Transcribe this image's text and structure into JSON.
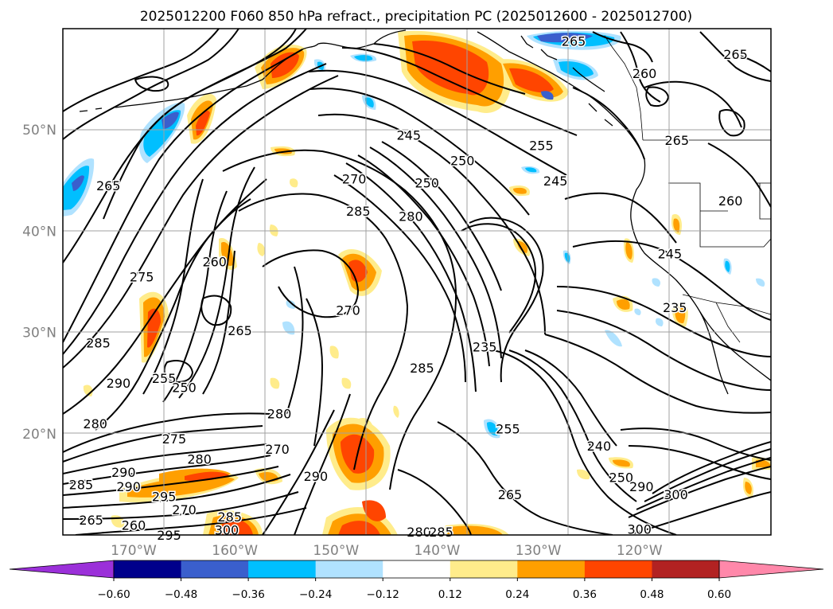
{
  "title": "2025012200 F060 850 hPa refract., precipitation PC (2025012600 - 2025012700)",
  "map": {
    "projection": "equirectangular",
    "lon_range": [
      -177,
      -107
    ],
    "lat_range": [
      10,
      60
    ],
    "lat_labels": [
      {
        "lat": 50,
        "text": "50°N"
      },
      {
        "lat": 40,
        "text": "40°N"
      },
      {
        "lat": 30,
        "text": "30°N"
      },
      {
        "lat": 20,
        "text": "20°N"
      }
    ],
    "lon_labels": [
      {
        "lon": -170,
        "text": "170°W"
      },
      {
        "lon": -160,
        "text": "160°W"
      },
      {
        "lon": -150,
        "text": "150°W"
      },
      {
        "lon": -140,
        "text": "140°W"
      },
      {
        "lon": -130,
        "text": "130°W"
      },
      {
        "lon": -120,
        "text": "120°W"
      }
    ],
    "contour_labels": [
      {
        "text": "265",
        "lon": -172.5,
        "lat": 44.5
      },
      {
        "text": "275",
        "lon": -169.2,
        "lat": 35.5
      },
      {
        "text": "285",
        "lon": -173.5,
        "lat": 29.0
      },
      {
        "text": "290",
        "lon": -171.5,
        "lat": 25.0
      },
      {
        "text": "280",
        "lon": -173.8,
        "lat": 21.0
      },
      {
        "text": "275",
        "lon": -166.0,
        "lat": 19.5
      },
      {
        "text": "280",
        "lon": -163.5,
        "lat": 17.5
      },
      {
        "text": "290",
        "lon": -171.0,
        "lat": 16.2
      },
      {
        "text": "285",
        "lon": -175.2,
        "lat": 15.0
      },
      {
        "text": "290",
        "lon": -170.5,
        "lat": 14.8
      },
      {
        "text": "295",
        "lon": -167.0,
        "lat": 13.8
      },
      {
        "text": "270",
        "lon": -165.0,
        "lat": 12.5
      },
      {
        "text": "285",
        "lon": -160.5,
        "lat": 11.8
      },
      {
        "text": "265",
        "lon": -174.2,
        "lat": 11.5
      },
      {
        "text": "260",
        "lon": -170.0,
        "lat": 11.0
      },
      {
        "text": "300",
        "lon": -160.8,
        "lat": 10.5
      },
      {
        "text": "295",
        "lon": -166.5,
        "lat": 10.0
      },
      {
        "text": "260",
        "lon": -162.0,
        "lat": 37.0
      },
      {
        "text": "265",
        "lon": -159.5,
        "lat": 30.2
      },
      {
        "text": "255",
        "lon": -167.0,
        "lat": 25.5
      },
      {
        "text": "250",
        "lon": -165.0,
        "lat": 24.6
      },
      {
        "text": "270",
        "lon": -148.8,
        "lat": 32.2
      },
      {
        "text": "280",
        "lon": -155.6,
        "lat": 22.0
      },
      {
        "text": "270",
        "lon": -155.8,
        "lat": 18.5
      },
      {
        "text": "290",
        "lon": -152.0,
        "lat": 15.8
      },
      {
        "text": "285",
        "lon": -141.5,
        "lat": 26.5
      },
      {
        "text": "235",
        "lon": -135.3,
        "lat": 28.6
      },
      {
        "text": "255",
        "lon": -133.0,
        "lat": 20.5
      },
      {
        "text": "240",
        "lon": -124.0,
        "lat": 18.8
      },
      {
        "text": "250",
        "lon": -121.8,
        "lat": 15.7
      },
      {
        "text": "265",
        "lon": -132.8,
        "lat": 14.0
      },
      {
        "text": "300",
        "lon": -116.4,
        "lat": 14.0
      },
      {
        "text": "290",
        "lon": -119.8,
        "lat": 14.8
      },
      {
        "text": "300",
        "lon": -120.0,
        "lat": 10.6
      },
      {
        "text": "280",
        "lon": -141.8,
        "lat": 10.3
      },
      {
        "text": "285",
        "lon": -139.6,
        "lat": 10.3
      },
      {
        "text": "245",
        "lon": -142.8,
        "lat": 49.5
      },
      {
        "text": "250",
        "lon": -137.5,
        "lat": 47.0
      },
      {
        "text": "250",
        "lon": -141.0,
        "lat": 44.8
      },
      {
        "text": "270",
        "lon": -148.2,
        "lat": 45.2
      },
      {
        "text": "285",
        "lon": -147.8,
        "lat": 42.0
      },
      {
        "text": "280",
        "lon": -142.6,
        "lat": 41.5
      },
      {
        "text": "255",
        "lon": -129.7,
        "lat": 48.5
      },
      {
        "text": "245",
        "lon": -128.3,
        "lat": 45.0
      },
      {
        "text": "265",
        "lon": -126.5,
        "lat": 58.8
      },
      {
        "text": "260",
        "lon": -119.5,
        "lat": 55.6
      },
      {
        "text": "265",
        "lon": -110.5,
        "lat": 57.5
      },
      {
        "text": "265",
        "lon": -116.3,
        "lat": 49.0
      },
      {
        "text": "260",
        "lon": -111.0,
        "lat": 43.0
      },
      {
        "text": "245",
        "lon": -117.0,
        "lat": 37.8
      },
      {
        "text": "235",
        "lon": -116.5,
        "lat": 32.5
      }
    ]
  },
  "colorbar": {
    "levels": [
      -0.6,
      -0.48,
      -0.36,
      -0.24,
      -0.12,
      0.12,
      0.24,
      0.36,
      0.48,
      0.6
    ],
    "labels": [
      "−0.60",
      "−0.48",
      "−0.36",
      "−0.24",
      "−0.12",
      "0.12",
      "0.24",
      "0.36",
      "0.48",
      "0.60"
    ],
    "under_color": "#9b30d9",
    "over_color": "#ff88aa",
    "colors": [
      "#00008b",
      "#3a5fcd",
      "#00bfff",
      "#b0e2ff",
      "#ffffff",
      "#ffec8b",
      "#ff9f00",
      "#ff4500",
      "#b22222"
    ]
  },
  "colors": {
    "dark_blue": "#3a5fcd",
    "sky_blue": "#00bfff",
    "pale_blue": "#b0e2ff",
    "yellow": "#ffec8b",
    "orange": "#ff9f00",
    "red_orange": "#ff4500",
    "navy": "#00008b"
  }
}
